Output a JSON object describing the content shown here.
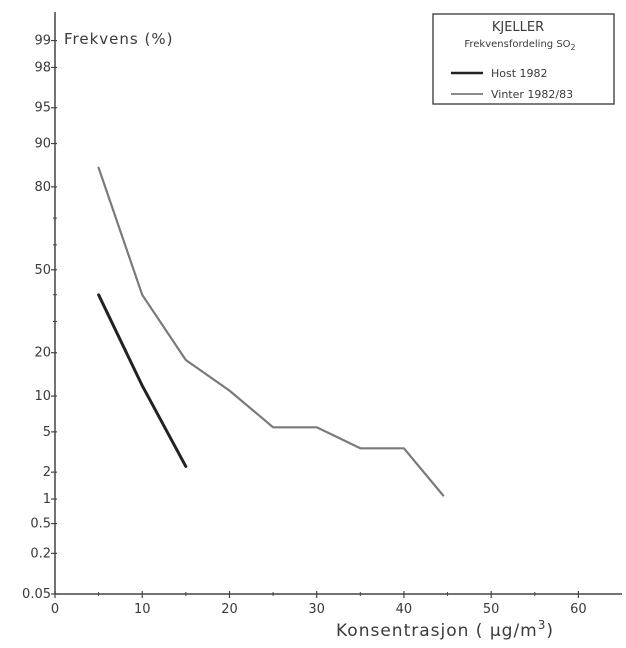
{
  "chart_data": {
    "type": "line",
    "ylabel": "Frekvens (%)",
    "xlabel_main": "Konsentrasjon ( µg/m",
    "xlabel_sup": "3",
    "xlabel_end": ")",
    "xlim": [
      0,
      65
    ],
    "ylim": [
      0.05,
      99.5
    ],
    "yscale": "probability",
    "xticks": [
      0,
      10,
      20,
      30,
      40,
      50,
      60
    ],
    "yticks": [
      "99",
      "98",
      "95",
      "90",
      "80",
      "50",
      "20",
      "10",
      "5",
      "2",
      "1",
      "0.5",
      "0.2",
      "0.05"
    ],
    "legend": {
      "title": "KJELLER",
      "subtitle_main": "Frekvensfordeling SO",
      "subtitle_sub": "2",
      "placement": "top-right"
    },
    "series": [
      {
        "name": "Host  1982",
        "color": "#222222",
        "x": [
          5,
          10,
          15
        ],
        "y": [
          40,
          12,
          2.3
        ]
      },
      {
        "name": "Vinter  1982/83",
        "color": "#7a7a7a",
        "x": [
          5,
          10,
          15,
          20,
          25,
          30,
          35,
          40,
          44.5
        ],
        "y": [
          85,
          40,
          18,
          11,
          5.5,
          5.5,
          3.5,
          3.5,
          1.1
        ]
      }
    ]
  }
}
